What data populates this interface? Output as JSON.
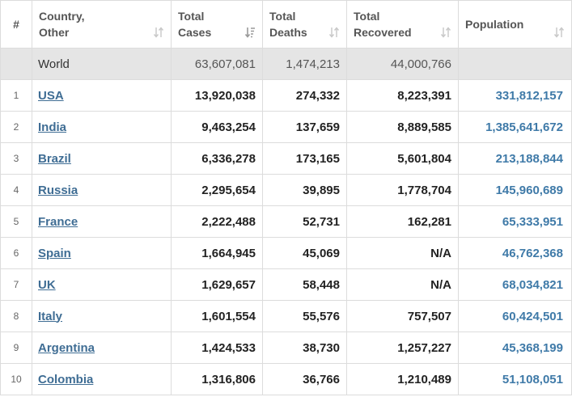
{
  "headers": {
    "rank": "#",
    "country": [
      "Country,",
      "Other"
    ],
    "total_cases": [
      "Total",
      "Cases"
    ],
    "total_deaths": [
      "Total",
      "Deaths"
    ],
    "total_recovered": [
      "Total",
      "Recovered"
    ],
    "population": "Population"
  },
  "world": {
    "name": "World",
    "total_cases": "63,607,081",
    "total_deaths": "1,474,213",
    "total_recovered": "44,000,766",
    "population": ""
  },
  "rows": [
    {
      "rank": "1",
      "country": "USA",
      "total_cases": "13,920,038",
      "total_deaths": "274,332",
      "total_recovered": "8,223,391",
      "population": "331,812,157"
    },
    {
      "rank": "2",
      "country": "India",
      "total_cases": "9,463,254",
      "total_deaths": "137,659",
      "total_recovered": "8,889,585",
      "population": "1,385,641,672"
    },
    {
      "rank": "3",
      "country": "Brazil",
      "total_cases": "6,336,278",
      "total_deaths": "173,165",
      "total_recovered": "5,601,804",
      "population": "213,188,844"
    },
    {
      "rank": "4",
      "country": "Russia",
      "total_cases": "2,295,654",
      "total_deaths": "39,895",
      "total_recovered": "1,778,704",
      "population": "145,960,689"
    },
    {
      "rank": "5",
      "country": "France",
      "total_cases": "2,222,488",
      "total_deaths": "52,731",
      "total_recovered": "162,281",
      "population": "65,333,951"
    },
    {
      "rank": "6",
      "country": "Spain",
      "total_cases": "1,664,945",
      "total_deaths": "45,069",
      "total_recovered": "N/A",
      "population": "46,762,368"
    },
    {
      "rank": "7",
      "country": "UK",
      "total_cases": "1,629,657",
      "total_deaths": "58,448",
      "total_recovered": "N/A",
      "population": "68,034,821"
    },
    {
      "rank": "8",
      "country": "Italy",
      "total_cases": "1,601,554",
      "total_deaths": "55,576",
      "total_recovered": "757,507",
      "population": "60,424,501"
    },
    {
      "rank": "9",
      "country": "Argentina",
      "total_cases": "1,424,533",
      "total_deaths": "38,730",
      "total_recovered": "1,257,227",
      "population": "45,368,199"
    },
    {
      "rank": "10",
      "country": "Colombia",
      "total_cases": "1,316,806",
      "total_deaths": "36,766",
      "total_recovered": "1,210,489",
      "population": "51,108,051"
    }
  ],
  "colors": {
    "link": "#3f6d94",
    "population": "#3f7aa8",
    "world_row_bg": "#e5e5e5",
    "border": "#dcdcdc",
    "sort_icon": "#c8c8c8",
    "sort_icon_active": "#9a9a9a"
  },
  "icons": {
    "sort": "sort-arrows-icon",
    "sort_active": "sort-desc-icon"
  }
}
